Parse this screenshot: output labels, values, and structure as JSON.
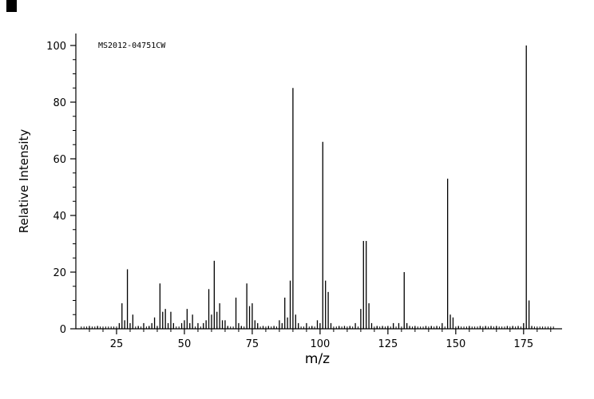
{
  "chart_data": {
    "type": "bar",
    "title": "",
    "annotation": "MS2012-04751CW",
    "xlabel": "m/z",
    "ylabel": "Relative Intensity",
    "xlim": [
      10,
      188
    ],
    "ylim": [
      0,
      100
    ],
    "xticks": [
      25,
      50,
      75,
      100,
      125,
      150,
      175
    ],
    "yticks": [
      0,
      20,
      40,
      60,
      80,
      100
    ],
    "x_minor_step": 5,
    "y_minor_step": 5,
    "grid": false,
    "legend": false,
    "noise": {
      "from": 12,
      "to": 186,
      "height": 0.8
    },
    "peaks": [
      [
        15,
        1
      ],
      [
        18,
        1
      ],
      [
        26,
        2
      ],
      [
        27,
        9
      ],
      [
        28,
        3
      ],
      [
        29,
        21
      ],
      [
        30,
        2
      ],
      [
        31,
        5
      ],
      [
        33,
        1
      ],
      [
        35,
        2
      ],
      [
        37,
        1
      ],
      [
        38,
        2
      ],
      [
        39,
        4
      ],
      [
        40,
        1
      ],
      [
        41,
        16
      ],
      [
        42,
        6
      ],
      [
        43,
        7
      ],
      [
        44,
        2
      ],
      [
        45,
        6
      ],
      [
        46,
        2
      ],
      [
        49,
        2
      ],
      [
        50,
        3
      ],
      [
        51,
        7
      ],
      [
        52,
        2
      ],
      [
        53,
        5
      ],
      [
        55,
        2
      ],
      [
        57,
        2
      ],
      [
        58,
        3
      ],
      [
        59,
        14
      ],
      [
        60,
        5
      ],
      [
        61,
        24
      ],
      [
        62,
        6
      ],
      [
        63,
        9
      ],
      [
        64,
        3
      ],
      [
        65,
        3
      ],
      [
        66,
        1
      ],
      [
        69,
        11
      ],
      [
        70,
        2
      ],
      [
        71,
        1
      ],
      [
        73,
        16
      ],
      [
        74,
        8
      ],
      [
        75,
        9
      ],
      [
        76,
        3
      ],
      [
        77,
        2
      ],
      [
        79,
        1
      ],
      [
        81,
        1
      ],
      [
        83,
        1
      ],
      [
        85,
        3
      ],
      [
        86,
        2
      ],
      [
        87,
        11
      ],
      [
        88,
        4
      ],
      [
        89,
        17
      ],
      [
        90,
        85
      ],
      [
        91,
        5
      ],
      [
        92,
        2
      ],
      [
        95,
        2
      ],
      [
        97,
        1
      ],
      [
        99,
        3
      ],
      [
        100,
        2
      ],
      [
        101,
        66
      ],
      [
        102,
        17
      ],
      [
        103,
        13
      ],
      [
        104,
        2
      ],
      [
        107,
        1
      ],
      [
        109,
        1
      ],
      [
        111,
        1
      ],
      [
        113,
        2
      ],
      [
        115,
        7
      ],
      [
        116,
        31
      ],
      [
        117,
        31
      ],
      [
        118,
        9
      ],
      [
        119,
        2
      ],
      [
        121,
        1
      ],
      [
        123,
        1
      ],
      [
        125,
        1
      ],
      [
        127,
        2
      ],
      [
        129,
        2
      ],
      [
        131,
        20
      ],
      [
        132,
        2
      ],
      [
        133,
        1
      ],
      [
        135,
        1
      ],
      [
        139,
        1
      ],
      [
        141,
        1
      ],
      [
        143,
        1
      ],
      [
        145,
        2
      ],
      [
        147,
        53
      ],
      [
        148,
        5
      ],
      [
        149,
        4
      ],
      [
        151,
        1
      ],
      [
        155,
        1
      ],
      [
        159,
        1
      ],
      [
        161,
        1
      ],
      [
        163,
        1
      ],
      [
        165,
        1
      ],
      [
        169,
        1
      ],
      [
        171,
        1
      ],
      [
        173,
        1
      ],
      [
        175,
        2
      ],
      [
        176,
        100
      ],
      [
        177,
        10
      ],
      [
        178,
        1
      ]
    ]
  }
}
